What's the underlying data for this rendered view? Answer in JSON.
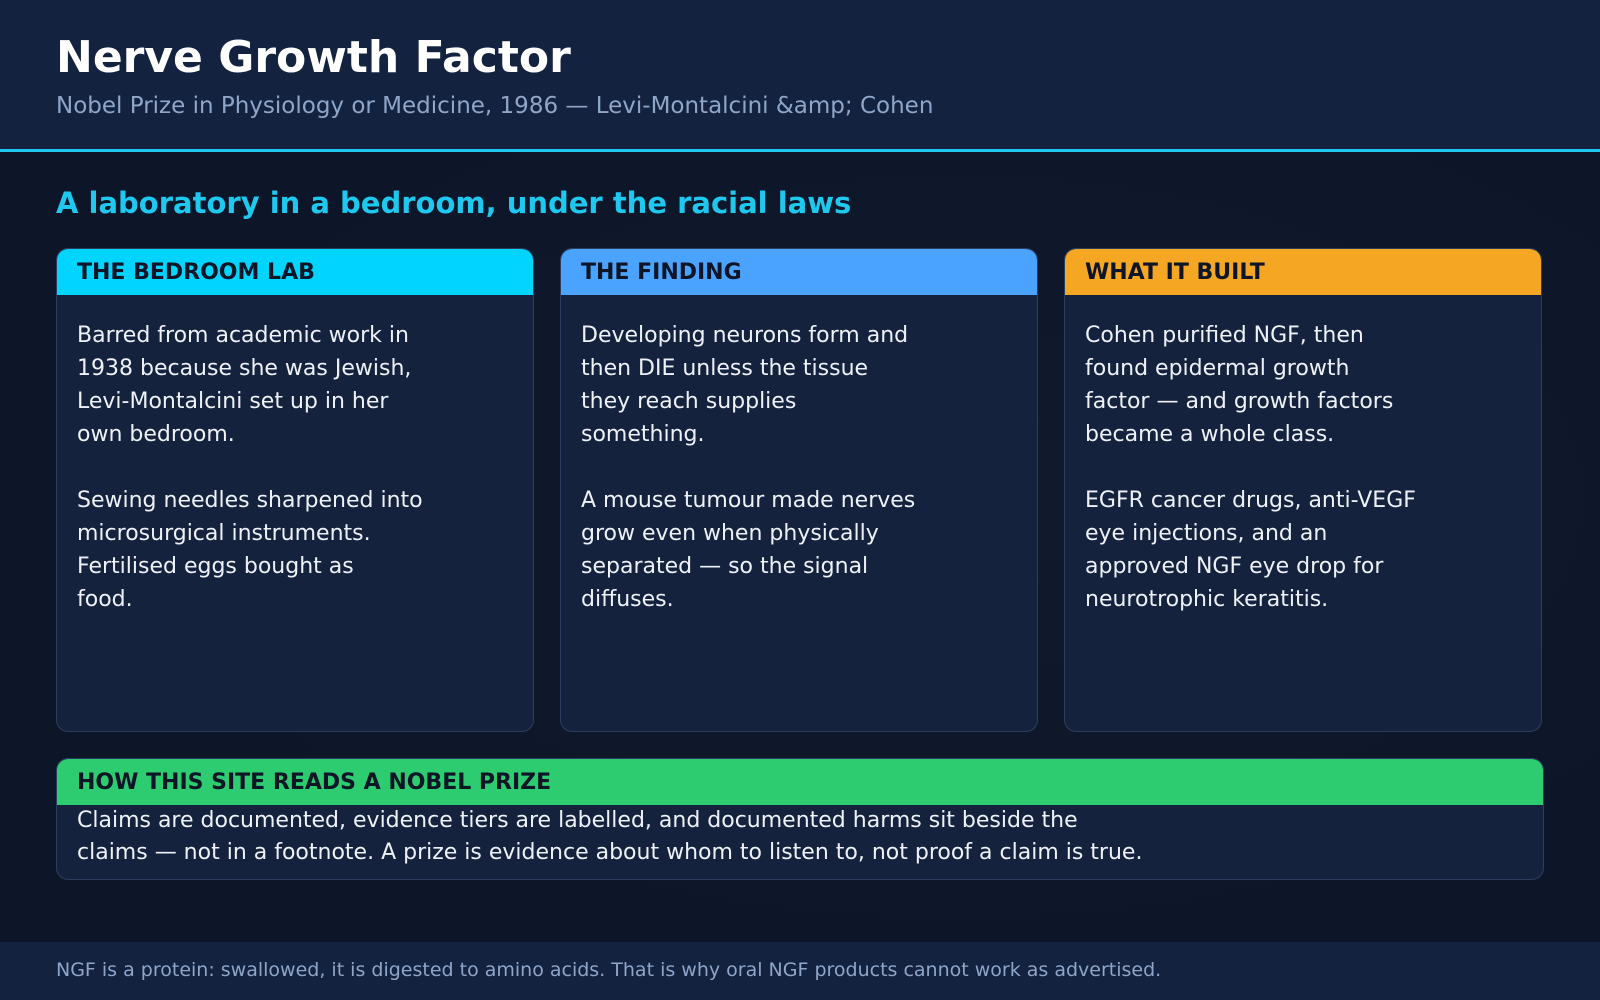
{
  "header": {
    "title": "Nerve Growth Factor",
    "subtitle": "Nobel Prize in Physiology or Medicine, 1986 — Levi-Montalcini &amp; Cohen"
  },
  "section": {
    "heading": "A laboratory in a bedroom, under the racial laws",
    "cards": [
      {
        "title": "THE BEDROOM LAB",
        "color": "#00d4ff",
        "paragraphs": [
          [
            "Barred from academic work in",
            "1938 because she was Jewish,",
            "Levi-Montalcini set up in her",
            "own bedroom."
          ],
          [
            "Sewing needles sharpened into",
            "microsurgical instruments.",
            "Fertilised eggs bought as",
            "food."
          ]
        ]
      },
      {
        "title": "THE FINDING",
        "color": "#4aa3ff",
        "paragraphs": [
          [
            "Developing neurons form and",
            "then DIE unless the tissue",
            "they reach supplies",
            "something."
          ],
          [
            "A mouse tumour made nerves",
            "grow even when physically",
            "separated — so the signal",
            "diffuses."
          ]
        ]
      },
      {
        "title": "WHAT IT BUILT",
        "color": "#f5a623",
        "paragraphs": [
          [
            "Cohen purified NGF, then",
            "found epidermal growth",
            "factor — and growth factors",
            "became a whole class."
          ],
          [
            "EGFR cancer drugs, anti-VEGF",
            "eye injections, and an",
            "approved NGF eye drop for",
            "neurotrophic keratitis."
          ]
        ]
      }
    ]
  },
  "note": {
    "title": "HOW THIS SITE READS A NOBEL PRIZE",
    "color": "#2ecc71",
    "lines": [
      "Claims are documented, evidence tiers are labelled, and documented harms sit beside the",
      "claims — not in a footnote. A prize is evidence about whom to listen to, not proof a claim is true."
    ]
  },
  "footer": {
    "text": "NGF is a protein: swallowed, it is digested to amino acids. That is why oral NGF products cannot work as advertised."
  }
}
